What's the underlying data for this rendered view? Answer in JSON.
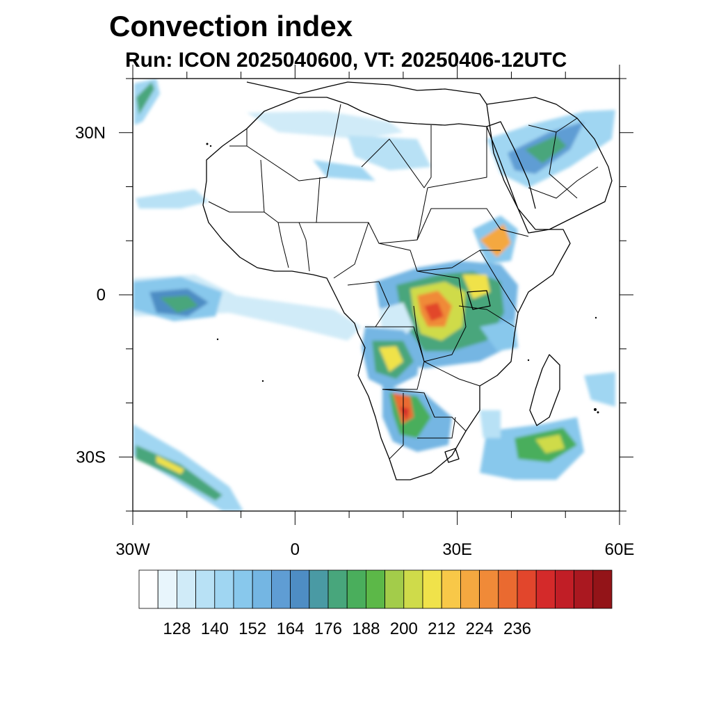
{
  "title": "Convection index",
  "subtitle": "Run: ICON 2025040600,  VT: 20250406-12UTC",
  "map": {
    "lon_range": [
      -30,
      60
    ],
    "lat_range": [
      -40,
      40
    ],
    "lon_ticks": [
      {
        "value": -30,
        "label": "30W"
      },
      {
        "value": 0,
        "label": "0"
      },
      {
        "value": 30,
        "label": "30E"
      },
      {
        "value": 60,
        "label": "60E"
      }
    ],
    "lat_ticks": [
      {
        "value": 30,
        "label": "30N"
      },
      {
        "value": 0,
        "label": "0"
      },
      {
        "value": -30,
        "label": "30S"
      }
    ]
  },
  "colorbar": {
    "colors": [
      "#ffffff",
      "#e8f5fc",
      "#d0ebf8",
      "#b8e1f5",
      "#a0d6f2",
      "#88c8ec",
      "#74b6e3",
      "#5f9dd4",
      "#4e8dc4",
      "#4a9aa4",
      "#48a67c",
      "#4aae5c",
      "#5cb848",
      "#a3cc4a",
      "#cfdb4a",
      "#f0e24a",
      "#f8c848",
      "#f4a840",
      "#f08a38",
      "#ea6a30",
      "#e2462c",
      "#d42a2a",
      "#c11e26",
      "#aa1820",
      "#931418"
    ],
    "labels": [
      "128",
      "140",
      "152",
      "164",
      "176",
      "188",
      "200",
      "212",
      "224",
      "236"
    ]
  }
}
